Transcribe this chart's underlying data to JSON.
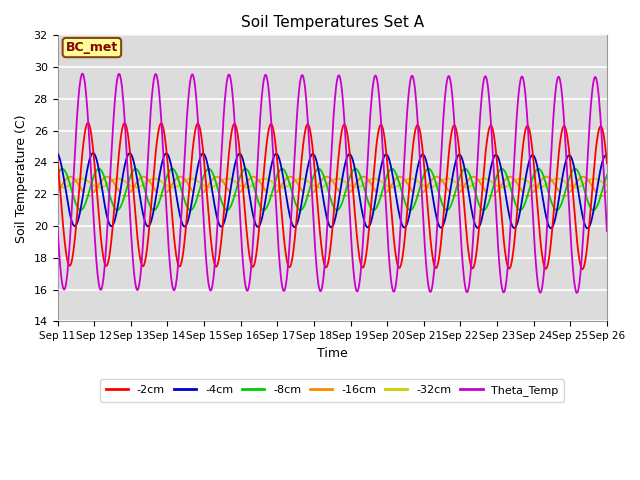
{
  "title": "Soil Temperatures Set A",
  "xlabel": "Time",
  "ylabel": "Soil Temperature (C)",
  "ylim": [
    14,
    32
  ],
  "xlim": [
    0,
    15
  ],
  "x_tick_labels": [
    "Sep 11",
    "Sep 12",
    "Sep 13",
    "Sep 14",
    "Sep 15",
    "Sep 16",
    "Sep 17",
    "Sep 18",
    "Sep 19",
    "Sep 20",
    "Sep 21",
    "Sep 22",
    "Sep 23",
    "Sep 24",
    "Sep 25",
    "Sep 26"
  ],
  "yticks": [
    14,
    16,
    18,
    20,
    22,
    24,
    26,
    28,
    30,
    32
  ],
  "legend_labels": [
    "-2cm",
    "-4cm",
    "-8cm",
    "-16cm",
    "-32cm",
    "Theta_Temp"
  ],
  "colors": {
    "-2cm": "#ff0000",
    "-4cm": "#0000cc",
    "-8cm": "#00cc00",
    "-16cm": "#ff8800",
    "-32cm": "#cccc00",
    "Theta_Temp": "#cc00cc"
  },
  "annotation_text": "BC_met",
  "annotation_bg": "#ffff99",
  "annotation_border": "#8B4513",
  "bg_color": "#dcdcdc",
  "periods": 15,
  "n_points_per_period": 96,
  "base_2cm": 22.0,
  "amp_2cm": 4.5,
  "phase_2cm": 0.58,
  "base_4cm": 22.3,
  "amp_4cm": 2.3,
  "phase_4cm": 0.72,
  "base_8cm": 22.3,
  "amp_8cm": 1.3,
  "phase_8cm": 0.88,
  "base_16cm": 22.5,
  "amp_16cm": 0.6,
  "phase_16cm": 1.1,
  "base_32cm": 22.7,
  "amp_32cm": 0.28,
  "phase_32cm": 1.4,
  "base_theta": 22.8,
  "amp_theta": 6.8,
  "phase_theta": 0.43
}
